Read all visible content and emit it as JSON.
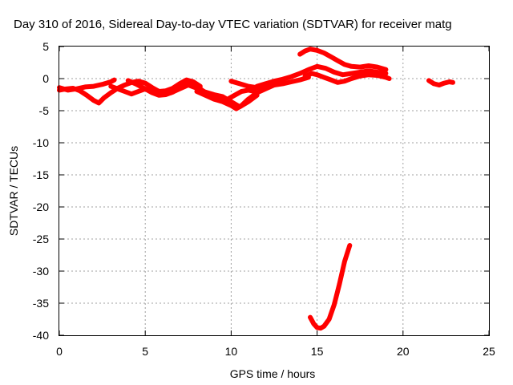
{
  "chart_data": {
    "type": "line",
    "title": "Day 310 of 2016, Sidereal Day-to-day VTEC variation (SDTVAR) for receiver matg",
    "xlabel": "GPS time / hours",
    "ylabel": "SDTVAR / TECUs",
    "xlim": [
      0,
      25
    ],
    "ylim": [
      -40,
      5
    ],
    "xticks": [
      0,
      5,
      10,
      15,
      20,
      25
    ],
    "yticks": [
      5,
      0,
      -5,
      -10,
      -15,
      -20,
      -25,
      -30,
      -35,
      -40
    ],
    "grid": true,
    "legend": "none",
    "series_color": "#ff0000",
    "series": [
      {
        "x": [
          0,
          0.5,
          1.0,
          1.5,
          2.0,
          2.5,
          3.0,
          3.2
        ],
        "y": [
          -1.4,
          -1.8,
          -1.6,
          -1.3,
          -1.2,
          -0.9,
          -0.5,
          -0.2
        ]
      },
      {
        "x": [
          0,
          0.4,
          0.8,
          1.2,
          1.6,
          2.0,
          2.3,
          2.6,
          3.0,
          3.4,
          3.8,
          4.2,
          4.6,
          5.0,
          5.4,
          5.8,
          6.2,
          6.6,
          7.0,
          7.4,
          7.8,
          8.2
        ],
        "y": [
          -1.8,
          -1.6,
          -1.5,
          -1.9,
          -2.6,
          -3.4,
          -3.8,
          -3.0,
          -2.2,
          -1.5,
          -1.0,
          -0.6,
          -0.4,
          -0.7,
          -1.4,
          -2.0,
          -1.9,
          -1.5,
          -0.8,
          -0.2,
          -0.5,
          -1.2
        ]
      },
      {
        "x": [
          3.0,
          3.4,
          3.8,
          4.2,
          4.6,
          5.0,
          5.4,
          5.8,
          6.2,
          6.6,
          7.0,
          7.4,
          7.8,
          8.2,
          8.6,
          9.0,
          9.4,
          9.8,
          10.2,
          10.6,
          11.0,
          11.4
        ],
        "y": [
          -1.2,
          -1.6,
          -2.0,
          -2.4,
          -2.0,
          -1.6,
          -2.2,
          -2.6,
          -2.5,
          -2.1,
          -1.3,
          -0.6,
          -0.8,
          -1.6,
          -2.4,
          -3.0,
          -3.4,
          -3.2,
          -2.6,
          -2.0,
          -1.8,
          -2.0
        ]
      },
      {
        "x": [
          4.0,
          4.5,
          5.0,
          5.5,
          6.0,
          6.5,
          7.0,
          7.5,
          8.0,
          8.5,
          9.0,
          9.5,
          10.0,
          10.5,
          11.0,
          11.5
        ],
        "y": [
          -0.3,
          -0.9,
          -1.6,
          -2.2,
          -2.5,
          -2.2,
          -1.6,
          -1.0,
          -1.5,
          -2.1,
          -2.5,
          -2.8,
          -3.6,
          -4.4,
          -3.6,
          -2.6
        ]
      },
      {
        "x": [
          8.0,
          8.5,
          9.0,
          9.5,
          10.0,
          10.3,
          10.6,
          11.0,
          11.5,
          12.0,
          12.5
        ],
        "y": [
          -2.0,
          -2.6,
          -3.2,
          -3.6,
          -4.2,
          -4.7,
          -4.2,
          -3.2,
          -2.2,
          -1.6,
          -1.0
        ]
      },
      {
        "x": [
          10.0,
          10.5,
          11.0,
          11.5,
          12.0,
          12.5,
          13.0,
          13.5,
          14.0,
          14.5
        ],
        "y": [
          -0.4,
          -0.8,
          -1.2,
          -1.4,
          -1.2,
          -1.0,
          -0.8,
          -0.5,
          -0.2,
          0.2
        ]
      },
      {
        "x": [
          11.5,
          12.0,
          12.5,
          13.0,
          13.5,
          14.0,
          14.5,
          15.0,
          15.5,
          16.0,
          16.5,
          17.0,
          17.5,
          18.0,
          18.5,
          19.0
        ],
        "y": [
          -1.2,
          -0.8,
          -0.4,
          -0.1,
          0.3,
          0.8,
          1.4,
          1.9,
          1.6,
          1.0,
          0.6,
          0.8,
          1.0,
          1.2,
          1.0,
          0.8
        ]
      },
      {
        "x": [
          14.3,
          14.7,
          15.0,
          15.4,
          15.8,
          16.2,
          16.6,
          17.0,
          17.5,
          18.0,
          18.5,
          19.0,
          19.2
        ],
        "y": [
          0.4,
          0.8,
          0.6,
          0.2,
          -0.2,
          -0.6,
          -0.4,
          0.0,
          0.4,
          0.6,
          0.5,
          0.2,
          0.0
        ]
      },
      {
        "x": [
          14.0,
          14.3,
          14.6,
          15.0,
          15.4,
          15.8,
          16.2,
          16.6,
          17.0,
          17.5,
          18.0,
          18.5,
          19.0
        ],
        "y": [
          3.8,
          4.3,
          4.6,
          4.4,
          4.0,
          3.4,
          2.8,
          2.2,
          1.9,
          1.8,
          2.0,
          1.8,
          1.4
        ]
      },
      {
        "x": [
          21.5,
          21.8,
          22.1,
          22.4,
          22.7,
          22.9
        ],
        "y": [
          -0.3,
          -0.8,
          -1.0,
          -0.7,
          -0.5,
          -0.6
        ]
      },
      {
        "x": [
          14.6,
          14.8,
          15.0,
          15.2,
          15.4,
          15.7,
          16.0,
          16.3,
          16.6,
          16.9
        ],
        "y": [
          -37.2,
          -38.2,
          -38.8,
          -38.9,
          -38.6,
          -37.5,
          -35.2,
          -32.0,
          -28.5,
          -26.0
        ]
      }
    ]
  }
}
